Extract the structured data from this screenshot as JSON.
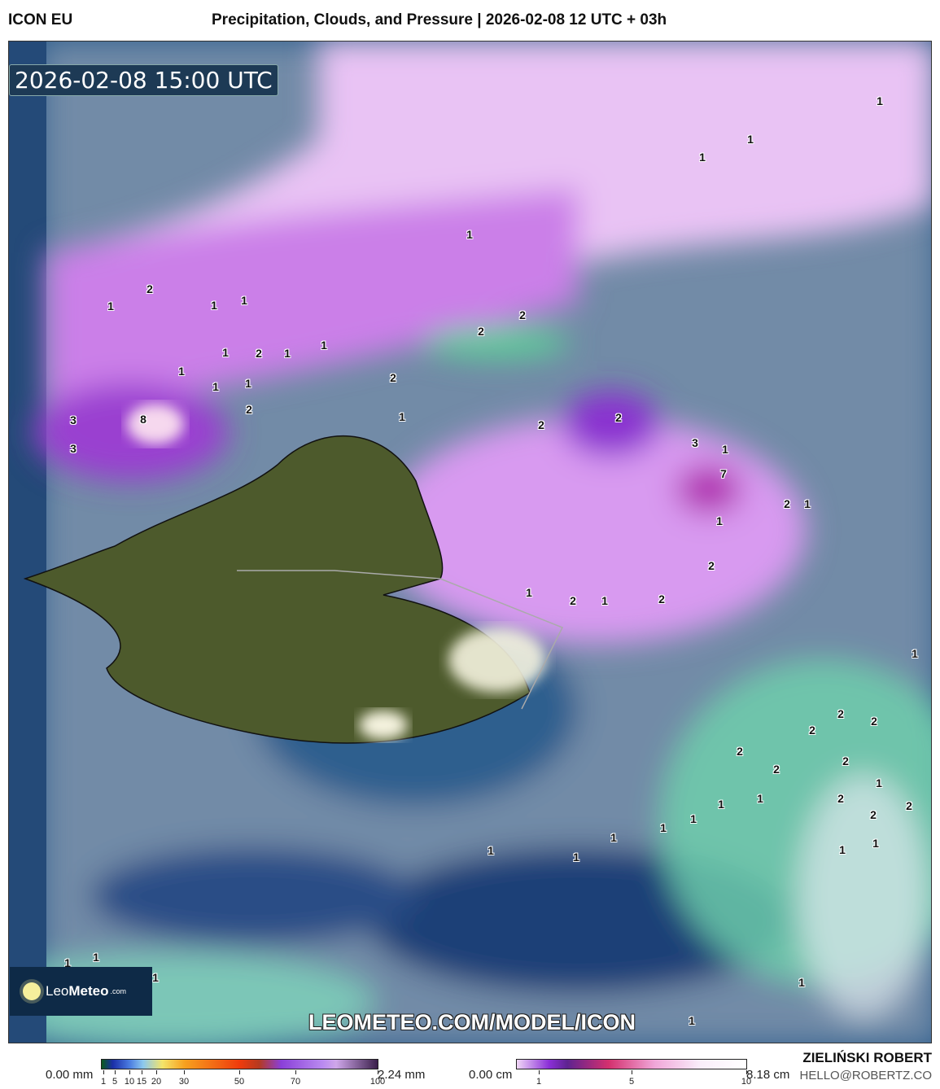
{
  "header": {
    "model": "ICON EU",
    "title": "Precipitation, Clouds, and Pressure | 2026-02-08 12 UTC + 03h"
  },
  "map": {
    "valid_time": "2026-02-08 15:00 UTC",
    "watermark": "LEOMETEO.COM/MODEL/ICON",
    "logo": {
      "text_light": "Leo",
      "text_bold": "Meteo",
      "suffix": ".com"
    },
    "precip_labels": [
      "1",
      "1",
      "1",
      "1",
      "2",
      "1",
      "1",
      "1",
      "2",
      "2",
      "1",
      "2",
      "1",
      "1",
      "1",
      "2",
      "1",
      "1",
      "2",
      "1",
      "2",
      "2",
      "3",
      "8",
      "3",
      "3",
      "1",
      "7",
      "2",
      "1",
      "1",
      "2",
      "1",
      "2",
      "1",
      "2",
      "1",
      "2",
      "2",
      "2",
      "2",
      "2",
      "2",
      "1",
      "1",
      "1",
      "2",
      "2",
      "2",
      "1",
      "1",
      "1",
      "1",
      "1",
      "1",
      "1",
      "1",
      "1",
      "1",
      "1",
      "1"
    ],
    "colors": {
      "ocean": "#2f5f8e",
      "land": "#4d5a2c",
      "clouds": "#8fa3b8",
      "snow_precip": "#d48ef0",
      "rain_green": "#6fd3ad"
    }
  },
  "legend": {
    "rain": {
      "min": "0.00 mm",
      "max": "2.24 mm",
      "ticks": [
        "1",
        "5",
        "10",
        "15",
        "20",
        "30",
        "50",
        "70",
        "100"
      ]
    },
    "snow": {
      "min": "0.00 cm",
      "max": "8.18 cm",
      "ticks": [
        "1",
        "5",
        "10"
      ]
    }
  },
  "credits": {
    "author": "ZIELIŃSKI ROBERT",
    "email": "HELLO@ROBERTZ.CO"
  }
}
